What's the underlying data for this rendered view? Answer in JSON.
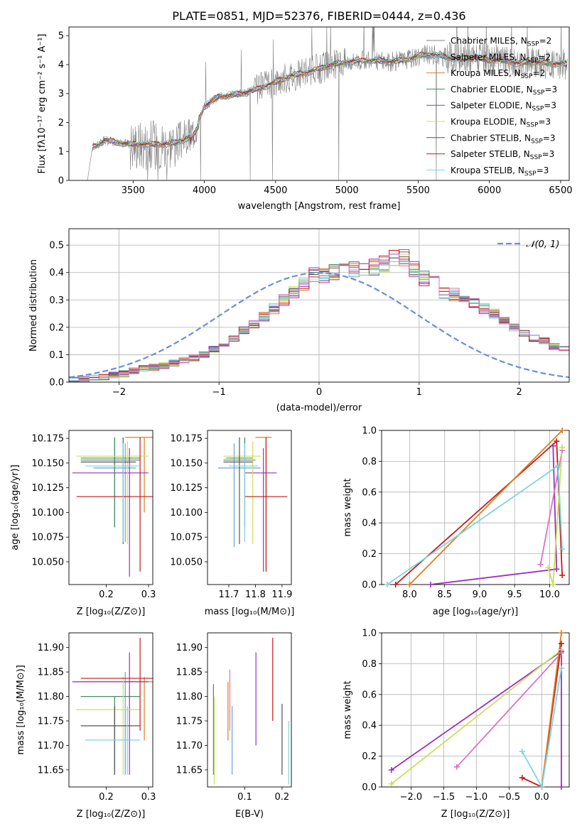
{
  "figure_title": "PLATE=0851, MJD=52376, FIBERID=0444, z=0.436",
  "colors": {
    "Chabrier MILES": "#808080",
    "Salpeter MILES": "#6fa0d8",
    "Kroupa MILES": "#e07b1f",
    "Chabrier ELODIE": "#3f8f5f",
    "Salpeter ELODIE": "#9b30c0",
    "Kroupa ELODIE": "#c8e05a",
    "Chabrier STELIB": "#555555",
    "Salpeter STELIB": "#c41a1a",
    "Kroupa STELIB": "#7fd4dc",
    "data": "#808080",
    "normal": "#6a8fd8",
    "pink": "#d874c0"
  },
  "chart_data": [
    {
      "type": "line",
      "title": "PLATE=0851, MJD=52376, FIBERID=0444, z=0.436",
      "xlabel": "wavelength [Angstrom, rest frame]",
      "ylabel": "Flux [fλ10⁻¹⁷ erg cm⁻² s⁻¹ A⁻¹]",
      "xlim": [
        3050,
        6560
      ],
      "ylim": [
        0,
        5.3
      ],
      "xticks": [
        3500,
        4000,
        4500,
        5000,
        5500,
        6000,
        6500
      ],
      "yticks": [
        0,
        1,
        2,
        3,
        4,
        5
      ],
      "legend_position": "top-right",
      "legend": [
        "Chabrier MILES, N_SSP=2",
        "Salpeter MILES, N_SSP=2",
        "Kroupa MILES, N_SSP=2",
        "Chabrier ELODIE, N_SSP=3",
        "Salpeter ELODIE, N_SSP=3",
        "Kroupa ELODIE, N_SSP=3",
        "Chabrier STELIB, N_SSP=3",
        "Salpeter STELIB, N_SSP=3",
        "Kroupa STELIB, N_SSP=3"
      ],
      "legend_names": [
        "Chabrier MILES",
        "Salpeter MILES",
        "Kroupa MILES",
        "Chabrier ELODIE",
        "Salpeter ELODIE",
        "Kroupa ELODIE",
        "Chabrier STELIB",
        "Salpeter STELIB",
        "Kroupa STELIB"
      ],
      "continuum": {
        "x": [
          3170,
          3180,
          3215,
          3260,
          3300,
          3400,
          3500,
          3600,
          3700,
          3800,
          3870,
          3900,
          3950,
          4000,
          4100,
          4200,
          4300,
          4400,
          4500,
          4600,
          4700,
          4800,
          4900,
          5000,
          5100,
          5200,
          5300,
          5400,
          5500,
          5600,
          5700,
          5800,
          5900,
          6000,
          6100,
          6200,
          6300,
          6400,
          6550
        ],
        "y": [
          0,
          0,
          1.15,
          1.25,
          1.4,
          1.3,
          1.25,
          1.25,
          1.25,
          1.3,
          1.45,
          1.5,
          2.0,
          2.55,
          2.9,
          2.95,
          3.05,
          3.2,
          3.4,
          3.6,
          3.7,
          3.85,
          4.0,
          4.1,
          4.15,
          4.15,
          4.1,
          4.15,
          4.3,
          4.35,
          4.25,
          4.2,
          4.25,
          4.15,
          4.15,
          4.05,
          4.1,
          4.05,
          4.0
        ]
      }
    },
    {
      "type": "bar",
      "xlabel": "(data-model)/error",
      "ylabel": "Normed distribution",
      "xlim": [
        -2.5,
        2.5
      ],
      "ylim": [
        0,
        0.56
      ],
      "xticks": [
        -2,
        -1,
        0,
        1,
        2
      ],
      "yticks": [
        0.0,
        0.1,
        0.2,
        0.3,
        0.4,
        0.5
      ],
      "legend": [
        "𝒩(0, 1)"
      ],
      "legend_position": "top-right",
      "bin_width": 0.1,
      "base_histogram": {
        "x_start": -2.5,
        "values": [
          0.01,
          0.01,
          0.015,
          0.02,
          0.025,
          0.03,
          0.04,
          0.05,
          0.055,
          0.06,
          0.07,
          0.08,
          0.09,
          0.1,
          0.12,
          0.14,
          0.16,
          0.19,
          0.21,
          0.24,
          0.27,
          0.3,
          0.33,
          0.36,
          0.39,
          0.39,
          0.4,
          0.41,
          0.41,
          0.42,
          0.42,
          0.43,
          0.46,
          0.45,
          0.41,
          0.38,
          0.36,
          0.33,
          0.32,
          0.3,
          0.29,
          0.27,
          0.25,
          0.22,
          0.2,
          0.18,
          0.16,
          0.15,
          0.13,
          0.12,
          0.11,
          0.09,
          0.08,
          0.07,
          0.06,
          0.05,
          0.04,
          0.04,
          0.03,
          0.03
        ]
      },
      "normal_curve": {
        "mean": 0,
        "std": 1
      }
    },
    {
      "type": "scatter",
      "xlabel": "Z [log₁₀(Z/Z⊙)]",
      "ylabel": "age  [log₁₀(age/yr)]",
      "xlim": [
        0.112,
        0.31
      ],
      "ylim": [
        10.027,
        10.183
      ],
      "xticks": [
        0.2,
        0.3
      ],
      "yticks": [
        10.05,
        10.075,
        10.1,
        10.125,
        10.15,
        10.175
      ],
      "points": [
        {
          "series": "Chabrier MILES",
          "x": 0.22,
          "y": 10.153,
          "xerr": [
            0.14,
            0.28
          ],
          "yerr": [
            10.085,
            10.175
          ]
        },
        {
          "series": "Salpeter MILES",
          "x": 0.245,
          "y": 10.145,
          "xerr": [
            0.17,
            0.27
          ],
          "yerr": [
            10.07,
            10.17
          ]
        },
        {
          "series": "Kroupa MILES",
          "x": 0.29,
          "y": 10.176,
          "xerr": [
            0.245,
            0.31
          ],
          "yerr": [
            10.1,
            10.176
          ]
        },
        {
          "series": "Chabrier ELODIE",
          "x": 0.22,
          "y": 10.155,
          "xerr": [
            0.14,
            0.28
          ],
          "yerr": [
            10.085,
            10.176
          ]
        },
        {
          "series": "Salpeter ELODIE",
          "x": 0.255,
          "y": 10.14,
          "xerr": [
            0.12,
            0.3
          ],
          "yerr": [
            10.035,
            10.165
          ]
        },
        {
          "series": "Kroupa ELODIE",
          "x": 0.25,
          "y": 10.157,
          "xerr": [
            0.13,
            0.3
          ],
          "yerr": [
            10.068,
            10.172
          ]
        },
        {
          "series": "Chabrier STELIB",
          "x": 0.24,
          "y": 10.151,
          "xerr": [
            0.14,
            0.27
          ],
          "yerr": [
            10.068,
            10.176
          ]
        },
        {
          "series": "Salpeter STELIB",
          "x": 0.28,
          "y": 10.116,
          "xerr": [
            0.13,
            0.31
          ],
          "yerr": [
            10.04,
            10.176
          ]
        },
        {
          "series": "Kroupa STELIB",
          "x": 0.24,
          "y": 10.147,
          "xerr": [
            0.15,
            0.28
          ],
          "yerr": [
            10.07,
            10.17
          ]
        }
      ]
    },
    {
      "type": "scatter",
      "xlabel": "mass [log₁₀(M/M⊙)]",
      "ylabel": "",
      "xlim": [
        11.62,
        11.935
      ],
      "ylim": [
        10.027,
        10.183
      ],
      "xticks": [
        11.7,
        11.8,
        11.9
      ],
      "yticks": [
        10.05,
        10.075,
        10.1,
        10.125,
        10.15,
        10.175
      ],
      "points": [
        {
          "series": "Chabrier MILES",
          "x": 11.76,
          "y": 10.153,
          "xerr": [
            11.68,
            11.8
          ],
          "yerr": [
            10.085,
            10.175
          ]
        },
        {
          "series": "Salpeter MILES",
          "x": 11.72,
          "y": 10.145,
          "xerr": [
            11.66,
            11.82
          ],
          "yerr": [
            10.065,
            10.17
          ]
        },
        {
          "series": "Kroupa MILES",
          "x": 11.84,
          "y": 10.176,
          "xerr": [
            11.8,
            11.86
          ],
          "yerr": [
            10.04,
            10.176
          ]
        },
        {
          "series": "Chabrier ELODIE",
          "x": 11.76,
          "y": 10.155,
          "xerr": [
            11.69,
            11.79
          ],
          "yerr": [
            10.085,
            10.176
          ]
        },
        {
          "series": "Salpeter ELODIE",
          "x": 11.83,
          "y": 10.14,
          "xerr": [
            11.76,
            11.88
          ],
          "yerr": [
            10.04,
            10.165
          ]
        },
        {
          "series": "Kroupa ELODIE",
          "x": 11.79,
          "y": 10.157,
          "xerr": [
            11.68,
            11.82
          ],
          "yerr": [
            10.068,
            10.172
          ]
        },
        {
          "series": "Chabrier STELIB",
          "x": 11.74,
          "y": 10.151,
          "xerr": [
            11.68,
            11.79
          ],
          "yerr": [
            10.068,
            10.176
          ]
        },
        {
          "series": "Salpeter STELIB",
          "x": 11.84,
          "y": 10.116,
          "xerr": [
            11.76,
            11.92
          ],
          "yerr": [
            10.04,
            10.176
          ]
        },
        {
          "series": "Kroupa STELIB",
          "x": 11.76,
          "y": 10.147,
          "xerr": [
            11.7,
            11.81
          ],
          "yerr": [
            10.07,
            10.17
          ]
        }
      ]
    },
    {
      "type": "line",
      "xlabel": "age  [log₁₀(age/yr)]",
      "ylabel": "mass weight",
      "xlim": [
        7.6,
        10.28
      ],
      "ylim": [
        0,
        1.0
      ],
      "xticks": [
        8.0,
        8.5,
        9.0,
        9.5,
        10.0
      ],
      "yticks": [
        0.0,
        0.2,
        0.4,
        0.6,
        0.8,
        1.0
      ],
      "series": [
        {
          "name": "Salpeter ELODIE",
          "x": [
            8.3,
            10.1,
            10.05
          ],
          "y": [
            0.0,
            0.1,
            0.9
          ]
        },
        {
          "name": "Salpeter STELIB",
          "x": [
            7.8,
            10.1,
            10.18
          ],
          "y": [
            0.0,
            0.93,
            0.06
          ]
        },
        {
          "name": "Kroupa MILES",
          "x": [
            8.0,
            10.18
          ],
          "y": [
            0.0,
            1.0
          ]
        },
        {
          "name": "pink",
          "x": [
            9.87,
            10.18
          ],
          "y": [
            0.13,
            0.87
          ]
        },
        {
          "name": "Kroupa ELODIE",
          "x": [
            9.98,
            10.05,
            10.18
          ],
          "y": [
            0.11,
            0.0,
            0.89
          ]
        },
        {
          "name": "Kroupa STELIB",
          "x": [
            7.68,
            10.12,
            10.18
          ],
          "y": [
            0.0,
            0.77,
            0.23
          ]
        }
      ]
    },
    {
      "type": "scatter",
      "xlabel": "Z [log₁₀(Z/Z⊙)]",
      "ylabel": "mass [log₁₀(M/M⊙)]",
      "xlim": [
        0.112,
        0.31
      ],
      "ylim": [
        11.615,
        11.93
      ],
      "xticks": [
        0.2,
        0.3
      ],
      "yticks": [
        11.65,
        11.7,
        11.75,
        11.8,
        11.85,
        11.9
      ],
      "points": [
        {
          "series": "Chabrier MILES",
          "x": 0.22,
          "y": 11.8,
          "xerr": [
            0.14,
            0.28
          ],
          "yerr": [
            11.65,
            11.785
          ]
        },
        {
          "series": "Salpeter MILES",
          "x": 0.245,
          "y": 11.83,
          "xerr": [
            0.12,
            0.29
          ],
          "yerr": [
            11.64,
            11.85
          ]
        },
        {
          "series": "Kroupa MILES",
          "x": 0.29,
          "y": 11.83,
          "xerr": [
            0.24,
            0.31
          ],
          "yerr": [
            11.71,
            11.84
          ]
        },
        {
          "series": "Chabrier ELODIE",
          "x": 0.22,
          "y": 11.8,
          "xerr": [
            0.14,
            0.28
          ],
          "yerr": [
            11.64,
            11.8
          ]
        },
        {
          "series": "Salpeter ELODIE",
          "x": 0.255,
          "y": 11.83,
          "xerr": [
            0.12,
            0.3
          ],
          "yerr": [
            11.64,
            11.89
          ]
        },
        {
          "series": "Kroupa ELODIE",
          "x": 0.24,
          "y": 11.773,
          "xerr": [
            0.13,
            0.28
          ],
          "yerr": [
            11.64,
            11.84
          ]
        },
        {
          "series": "Chabrier STELIB",
          "x": 0.22,
          "y": 11.74,
          "xerr": [
            0.14,
            0.28
          ],
          "yerr": [
            11.64,
            11.78
          ]
        },
        {
          "series": "Salpeter STELIB",
          "x": 0.28,
          "y": 11.837,
          "xerr": [
            0.14,
            0.31
          ],
          "yerr": [
            11.73,
            11.92
          ]
        },
        {
          "series": "Kroupa STELIB",
          "x": 0.25,
          "y": 11.711,
          "xerr": [
            0.15,
            0.28
          ],
          "yerr": [
            11.64,
            11.78
          ]
        }
      ]
    },
    {
      "type": "scatter",
      "xlabel": "E(B-V)",
      "ylabel": "",
      "xlim": [
        0.0,
        0.225
      ],
      "ylim": [
        11.615,
        11.93
      ],
      "xticks": [
        0.1,
        0.2
      ],
      "yticks": [
        11.65,
        11.7,
        11.75,
        11.8,
        11.85,
        11.9
      ],
      "points": [
        {
          "series": "Chabrier ELODIE",
          "x": 0.016,
          "yerr": [
            11.64,
            11.825
          ]
        },
        {
          "series": "Kroupa ELODIE",
          "x": 0.018,
          "yerr": [
            11.62,
            11.8
          ]
        },
        {
          "series": "Kroupa MILES",
          "x": 0.055,
          "yerr": [
            11.71,
            11.83
          ]
        },
        {
          "series": "pink",
          "x": 0.06,
          "yerr": [
            11.73,
            11.855
          ]
        },
        {
          "series": "Salpeter MILES",
          "x": 0.066,
          "yerr": [
            11.64,
            11.78
          ]
        },
        {
          "series": "Salpeter ELODIE",
          "x": 0.13,
          "yerr": [
            11.7,
            11.89
          ]
        },
        {
          "series": "Salpeter STELIB",
          "x": 0.175,
          "yerr": [
            11.75,
            11.92
          ]
        },
        {
          "series": "Chabrier STELIB",
          "x": 0.2,
          "yerr": [
            11.64,
            11.785
          ]
        },
        {
          "series": "Kroupa STELIB",
          "x": 0.218,
          "yerr": [
            11.62,
            11.75
          ]
        }
      ]
    },
    {
      "type": "line",
      "xlabel": "Z [log₁₀(Z/Z⊙)]",
      "ylabel": "mass weight",
      "xlim": [
        -2.45,
        0.42
      ],
      "ylim": [
        0,
        1.0
      ],
      "xticks": [
        -2.0,
        -1.5,
        -1.0,
        -0.5,
        0.0
      ],
      "yticks": [
        0.0,
        0.2,
        0.4,
        0.6,
        0.8,
        1.0
      ],
      "series": [
        {
          "name": "Salpeter ELODIE",
          "x": [
            -2.3,
            0.3,
            0.3
          ],
          "y": [
            0.11,
            0.88,
            0.0
          ]
        },
        {
          "name": "Kroupa ELODIE",
          "x": [
            -2.3,
            0.3
          ],
          "y": [
            0.02,
            0.89
          ]
        },
        {
          "name": "pink",
          "x": [
            -1.3,
            0.3
          ],
          "y": [
            0.13,
            0.87
          ]
        },
        {
          "name": "Salpeter STELIB",
          "x": [
            -0.3,
            0.0,
            0.3
          ],
          "y": [
            0.06,
            0.0,
            0.93
          ]
        },
        {
          "name": "Kroupa MILES",
          "x": [
            0.0,
            0.3
          ],
          "y": [
            0.0,
            1.0
          ]
        },
        {
          "name": "Kroupa STELIB",
          "x": [
            -0.3,
            0.0,
            0.3
          ],
          "y": [
            0.23,
            0.0,
            0.77
          ]
        }
      ]
    }
  ]
}
